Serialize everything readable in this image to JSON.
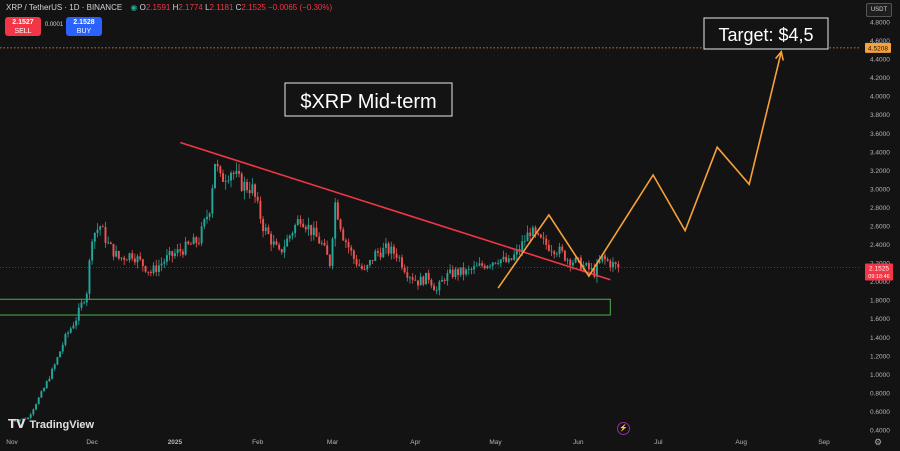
{
  "header": {
    "symbol": "XRP / TetherUS · 1D · BINANCE",
    "open": "2.1591",
    "high": "2.1774",
    "low": "2.1181",
    "close": "2.1525",
    "change": "−0.0065 (−0.30%)"
  },
  "trade": {
    "sell_price": "2.1527",
    "sell_label": "SELL",
    "spread": "0.0001",
    "buy_price": "2.1528",
    "buy_label": "BUY"
  },
  "currency": "USDT",
  "brand": "TradingView",
  "annotations": {
    "title": "$XRP Mid-term",
    "target": "Target: $4,5"
  },
  "price_tag": {
    "price": "2.1525",
    "countdown": "09:18:46"
  },
  "target_tag": "4.5208",
  "colors": {
    "up": "#26a69a",
    "down": "#ef5350",
    "trendline": "#f23645",
    "projection": "#f7a13a",
    "support_box": "#4caf50"
  },
  "chart_data": {
    "type": "candlestick",
    "symbol": "XRP/USDT",
    "interval": "1D",
    "ylim": [
      0.4,
      4.8
    ],
    "yticks": [
      0.4,
      0.6,
      0.8,
      1.0,
      1.2,
      1.4,
      1.6,
      1.8,
      2.0,
      2.2,
      2.4,
      2.6,
      2.8,
      3.0,
      3.2,
      3.4,
      3.6,
      3.8,
      4.0,
      4.2,
      4.4,
      4.6,
      4.8
    ],
    "x_range_days": [
      0,
      304
    ],
    "month_ticks": [
      {
        "label": "Nov",
        "day": 0
      },
      {
        "label": "Dec",
        "day": 30
      },
      {
        "label": "2025",
        "day": 61
      },
      {
        "label": "Feb",
        "day": 92
      },
      {
        "label": "Mar",
        "day": 120
      },
      {
        "label": "Apr",
        "day": 151
      },
      {
        "label": "May",
        "day": 181
      },
      {
        "label": "Jun",
        "day": 212
      },
      {
        "label": "Jul",
        "day": 242
      },
      {
        "label": "Aug",
        "day": 273
      },
      {
        "label": "Sep",
        "day": 304
      }
    ],
    "anchors": [
      {
        "day": 0,
        "price": 0.5
      },
      {
        "day": 6,
        "price": 0.53
      },
      {
        "day": 12,
        "price": 0.85
      },
      {
        "day": 16,
        "price": 1.1
      },
      {
        "day": 20,
        "price": 1.4
      },
      {
        "day": 24,
        "price": 1.6
      },
      {
        "day": 28,
        "price": 1.9
      },
      {
        "day": 30,
        "price": 2.5
      },
      {
        "day": 33,
        "price": 2.6
      },
      {
        "day": 36,
        "price": 2.4
      },
      {
        "day": 40,
        "price": 2.25
      },
      {
        "day": 45,
        "price": 2.3
      },
      {
        "day": 52,
        "price": 2.1
      },
      {
        "day": 58,
        "price": 2.25
      },
      {
        "day": 64,
        "price": 2.35
      },
      {
        "day": 70,
        "price": 2.45
      },
      {
        "day": 74,
        "price": 2.8
      },
      {
        "day": 76,
        "price": 3.3
      },
      {
        "day": 78,
        "price": 3.1
      },
      {
        "day": 82,
        "price": 3.2
      },
      {
        "day": 86,
        "price": 3.05
      },
      {
        "day": 90,
        "price": 3.0
      },
      {
        "day": 94,
        "price": 2.6
      },
      {
        "day": 96,
        "price": 2.5
      },
      {
        "day": 100,
        "price": 2.3
      },
      {
        "day": 104,
        "price": 2.5
      },
      {
        "day": 108,
        "price": 2.7
      },
      {
        "day": 112,
        "price": 2.55
      },
      {
        "day": 116,
        "price": 2.4
      },
      {
        "day": 119,
        "price": 2.2
      },
      {
        "day": 121,
        "price": 2.85
      },
      {
        "day": 124,
        "price": 2.5
      },
      {
        "day": 128,
        "price": 2.25
      },
      {
        "day": 132,
        "price": 2.1
      },
      {
        "day": 136,
        "price": 2.3
      },
      {
        "day": 140,
        "price": 2.35
      },
      {
        "day": 144,
        "price": 2.3
      },
      {
        "day": 148,
        "price": 2.1
      },
      {
        "day": 152,
        "price": 2.0
      },
      {
        "day": 156,
        "price": 2.05
      },
      {
        "day": 159,
        "price": 1.9
      },
      {
        "day": 162,
        "price": 2.05
      },
      {
        "day": 166,
        "price": 2.1
      },
      {
        "day": 170,
        "price": 2.1
      },
      {
        "day": 174,
        "price": 2.15
      },
      {
        "day": 178,
        "price": 2.2
      },
      {
        "day": 182,
        "price": 2.25
      },
      {
        "day": 186,
        "price": 2.2
      },
      {
        "day": 190,
        "price": 2.35
      },
      {
        "day": 194,
        "price": 2.55
      },
      {
        "day": 197,
        "price": 2.45
      },
      {
        "day": 200,
        "price": 2.4
      },
      {
        "day": 204,
        "price": 2.35
      },
      {
        "day": 208,
        "price": 2.25
      },
      {
        "day": 212,
        "price": 2.2
      },
      {
        "day": 215,
        "price": 2.15
      },
      {
        "day": 218,
        "price": 2.1
      },
      {
        "day": 221,
        "price": 2.25
      },
      {
        "day": 224,
        "price": 2.2
      },
      {
        "day": 227,
        "price": 2.15
      }
    ],
    "trendline": [
      {
        "day": 63,
        "price": 3.5
      },
      {
        "day": 224,
        "price": 2.02
      }
    ],
    "support_zone": {
      "day_start": -6,
      "day_end": 224,
      "price_low": 1.64,
      "price_high": 1.81
    },
    "projection_path": [
      {
        "day": 182,
        "price": 1.93
      },
      {
        "day": 201,
        "price": 2.72
      },
      {
        "day": 216,
        "price": 2.06
      },
      {
        "day": 240,
        "price": 3.15
      },
      {
        "day": 252,
        "price": 2.55
      },
      {
        "day": 264,
        "price": 3.45
      },
      {
        "day": 276,
        "price": 3.05
      },
      {
        "day": 288,
        "price": 4.48
      }
    ],
    "target_level": 4.5208,
    "last_price": 2.1525
  }
}
